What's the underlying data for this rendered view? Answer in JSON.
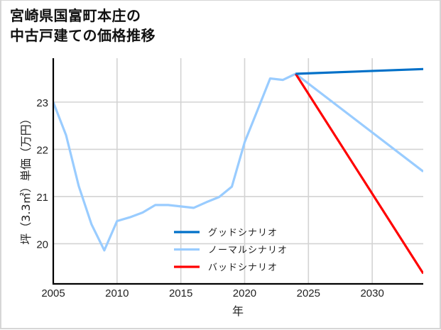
{
  "title": {
    "line1": "宮崎県国富町本庄の",
    "line2": "中古戸建ての価格推移"
  },
  "chart_data": {
    "type": "line",
    "title": "宮崎県国富町本庄の中古戸建ての価格推移",
    "xlabel": "年",
    "ylabel": "坪（3.3㎡）単価（万円）",
    "xlim": [
      2005,
      2034
    ],
    "ylim": [
      19.15,
      23.93
    ],
    "xticks": [
      2005,
      2010,
      2015,
      2020,
      2025,
      2030
    ],
    "yticks": [
      20,
      21,
      22,
      23
    ],
    "grid": true,
    "legend_position": "lower center (inside plot)",
    "series": [
      {
        "name": "グッドシナリオ",
        "color": "#0070c8",
        "x": [
          2024,
          2034
        ],
        "values": [
          23.6,
          23.7
        ]
      },
      {
        "name": "ノーマルシナリオ",
        "color": "#99ccff",
        "x": [
          2005,
          2006,
          2007,
          2008,
          2009,
          2010,
          2011,
          2012,
          2013,
          2014,
          2015,
          2016,
          2017,
          2018,
          2019,
          2020,
          2021,
          2022,
          2023,
          2024,
          2034
        ],
        "values": [
          23.0,
          22.3,
          21.22,
          20.41,
          19.86,
          20.48,
          20.56,
          20.66,
          20.82,
          20.82,
          20.79,
          20.76,
          20.88,
          20.99,
          21.21,
          22.15,
          22.82,
          23.5,
          23.47,
          23.6,
          21.53
        ]
      },
      {
        "name": "バッドシナリオ",
        "color": "#ff0000",
        "x": [
          2024,
          2034
        ],
        "values": [
          23.6,
          19.37
        ]
      }
    ]
  },
  "legend": {
    "items": [
      {
        "label": "グッドシナリオ",
        "color": "#0070c8"
      },
      {
        "label": "ノーマルシナリオ",
        "color": "#99ccff"
      },
      {
        "label": "バッドシナリオ",
        "color": "#ff0000"
      }
    ]
  },
  "axes": {
    "x_label": "年",
    "y_label": "坪（3.3㎡）単価（万円）",
    "x_ticks": [
      "2005",
      "2010",
      "2015",
      "2020",
      "2025",
      "2030"
    ],
    "y_ticks": [
      "20",
      "21",
      "22",
      "23"
    ]
  }
}
